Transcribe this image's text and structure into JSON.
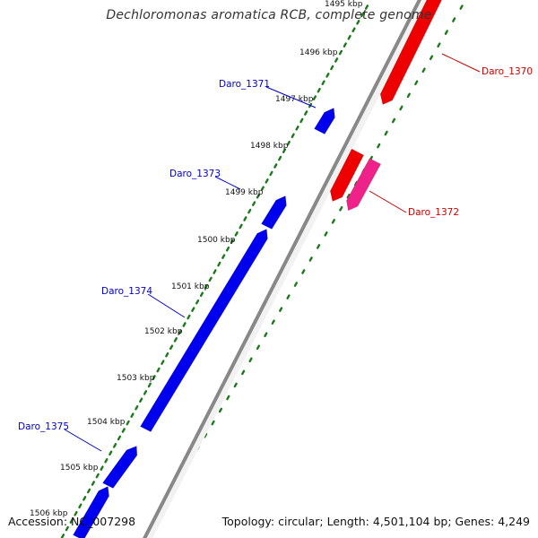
{
  "title": "Dechloromonas aromatica RCB, complete genome",
  "footer": {
    "accession": "Accession: NC_007298",
    "summary": "Topology: circular; Length: 4,501,104 bp; Genes: 4,249"
  },
  "colors": {
    "forward_gene": "#0000ee",
    "reverse_gene": "#ee0000",
    "reverse_gene_alt": "#ee2288",
    "backbone": "#888888",
    "tick": "#1a7a1a",
    "forward_label": "#0000cc",
    "reverse_label": "#cc0000"
  },
  "kbp_ticks": [
    "1495 kbp",
    "1496 kbp",
    "1497 kbp",
    "1498 kbp",
    "1499 kbp",
    "1500 kbp",
    "1501 kbp",
    "1502 kbp",
    "1503 kbp",
    "1504 kbp",
    "1505 kbp",
    "1506 kbp"
  ],
  "genes": [
    {
      "label": "Daro_1370",
      "strand": "reverse"
    },
    {
      "label": "Daro_1371",
      "strand": "forward"
    },
    {
      "label": "Daro_1372",
      "strand": "reverse"
    },
    {
      "label": "Daro_1373",
      "strand": "forward"
    },
    {
      "label": "Daro_1374",
      "strand": "forward"
    },
    {
      "label": "Daro_1375",
      "strand": "forward"
    }
  ]
}
